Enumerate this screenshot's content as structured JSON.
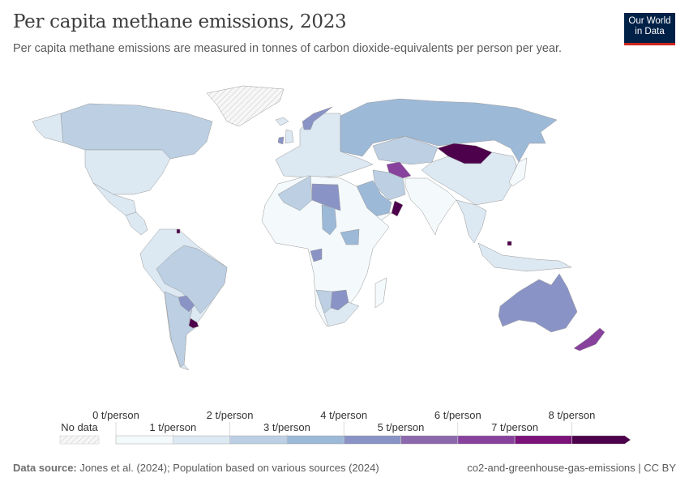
{
  "header": {
    "title": "Per capita methane emissions, 2023",
    "subtitle": "Per capita methane emissions are measured in tonnes of carbon dioxide-equivalents per person per year.",
    "logo_line1": "Our World",
    "logo_line2": "in Data"
  },
  "footer": {
    "source_label": "Data source:",
    "source_text": "Jones et al. (2024); Population based on various sources (2024)",
    "slug": "co2-and-greenhouse-gas-emissions | CC BY"
  },
  "legend": {
    "no_data_label": "No data",
    "bins": [
      {
        "min": 0,
        "max": 1,
        "color": "#f4f9fb"
      },
      {
        "min": 1,
        "max": 2,
        "color": "#dce8f2"
      },
      {
        "min": 2,
        "max": 3,
        "color": "#bccfe3"
      },
      {
        "min": 3,
        "max": 4,
        "color": "#9db9d8"
      },
      {
        "min": 4,
        "max": 5,
        "color": "#8a93c5"
      },
      {
        "min": 5,
        "max": 6,
        "color": "#8c68ad"
      },
      {
        "min": 6,
        "max": 7,
        "color": "#88419d"
      },
      {
        "min": 7,
        "max": 8,
        "color": "#7b1279"
      },
      {
        "min": 8,
        "max": null,
        "color": "#4d004b"
      }
    ],
    "tick_labels": [
      "0 t/person",
      "1 t/person",
      "2 t/person",
      "3 t/person",
      "4 t/person",
      "5 t/person",
      "6 t/person",
      "7 t/person",
      "8 t/person"
    ],
    "no_data_color": "#f2f2f2"
  },
  "map": {
    "regions": [
      {
        "region": "Greenland",
        "value": null
      },
      {
        "region": "Alaska",
        "value": 1.5
      },
      {
        "region": "Canada",
        "value": 2.5
      },
      {
        "region": "United States",
        "value": 1.8
      },
      {
        "region": "Mexico",
        "value": 1.2
      },
      {
        "region": "Central America",
        "value": 1.0
      },
      {
        "region": "South America",
        "value": 1.5
      },
      {
        "region": "Brazil",
        "value": 2.6
      },
      {
        "region": "Argentina",
        "value": 2.7
      },
      {
        "region": "Paraguay",
        "value": 4.5
      },
      {
        "region": "Uruguay",
        "value": 8.5
      },
      {
        "region": "Suriname",
        "value": 8.5
      },
      {
        "region": "Europe",
        "value": 1.2
      },
      {
        "region": "Iceland",
        "value": 1.5
      },
      {
        "region": "United Kingdom",
        "value": 1.2
      },
      {
        "region": "Ireland",
        "value": 4.2
      },
      {
        "region": "Norway",
        "value": 4.3
      },
      {
        "region": "Russia",
        "value": 3.5
      },
      {
        "region": "Kazakhstan",
        "value": 2.8
      },
      {
        "region": "Mongolia",
        "value": 9.0
      },
      {
        "region": "China",
        "value": 1.5
      },
      {
        "region": "Turkmenistan",
        "value": 6.5
      },
      {
        "region": "Iran",
        "value": 2.5
      },
      {
        "region": "Saudi Arabia",
        "value": 3.5
      },
      {
        "region": "Oman",
        "value": 9.0
      },
      {
        "region": "Yemen",
        "value": 0.8
      },
      {
        "region": "India",
        "value": 0.7
      },
      {
        "region": "Southeast Asia",
        "value": 1.3
      },
      {
        "region": "Indonesia",
        "value": 1.3
      },
      {
        "region": "Brunei",
        "value": 9.0
      },
      {
        "region": "Japan",
        "value": 0.5
      },
      {
        "region": "Africa",
        "value": 0.8
      },
      {
        "region": "Algeria",
        "value": 2.5
      },
      {
        "region": "Libya",
        "value": 4.5
      },
      {
        "region": "Chad",
        "value": 3.5
      },
      {
        "region": "South Sudan",
        "value": 3.5
      },
      {
        "region": "Gabon",
        "value": 4.5
      },
      {
        "region": "Namibia",
        "value": 2.5
      },
      {
        "region": "Botswana",
        "value": 4.5
      },
      {
        "region": "South Africa",
        "value": 1.5
      },
      {
        "region": "Madagascar",
        "value": 0.8
      },
      {
        "region": "Australia",
        "value": 4.6
      },
      {
        "region": "New Zealand",
        "value": 6.5
      }
    ]
  }
}
